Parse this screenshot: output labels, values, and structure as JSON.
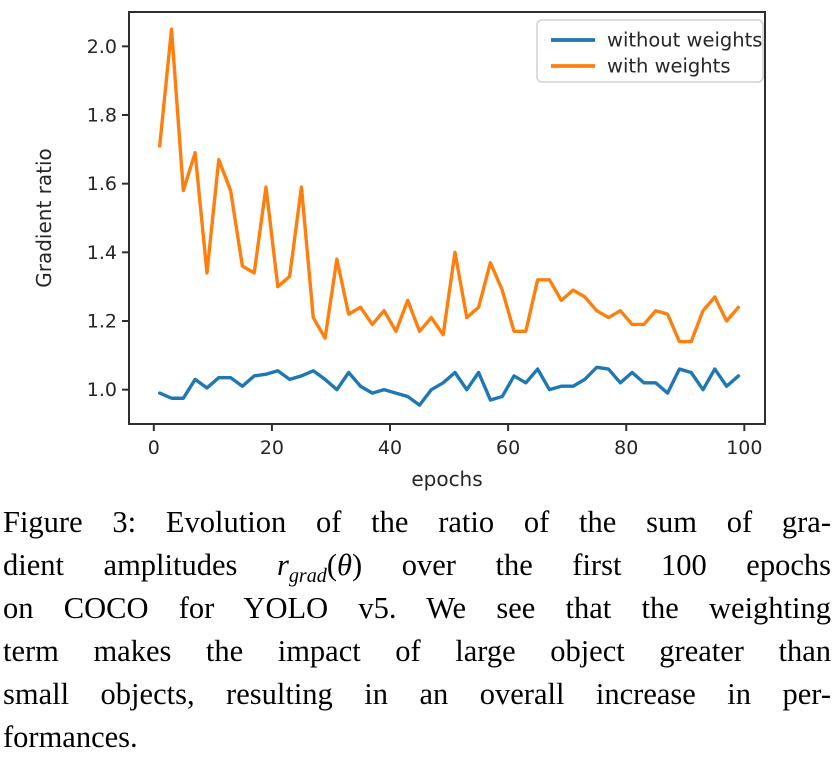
{
  "chart_data": {
    "type": "line",
    "title": "",
    "xlabel": "epochs",
    "ylabel": "Gradient ratio",
    "xlim": [
      -4.2,
      103.5
    ],
    "ylim": [
      0.9,
      2.1
    ],
    "xticks": [
      0,
      20,
      40,
      60,
      80,
      100
    ],
    "yticks": [
      1.0,
      1.2,
      1.4,
      1.6,
      1.8,
      2.0
    ],
    "grid": false,
    "legend_position": "upper right",
    "axis_color": "#2e2e2e",
    "tick_label_color": "#262626",
    "x": [
      1,
      3,
      5,
      7,
      9,
      11,
      13,
      15,
      17,
      19,
      21,
      23,
      25,
      27,
      29,
      31,
      33,
      35,
      37,
      39,
      41,
      43,
      45,
      47,
      49,
      51,
      53,
      55,
      57,
      59,
      61,
      63,
      65,
      67,
      69,
      71,
      73,
      75,
      77,
      79,
      81,
      83,
      85,
      87,
      89,
      91,
      93,
      95,
      97,
      99
    ],
    "series": [
      {
        "name": "without weights",
        "color": "#1f77b4",
        "values": [
          0.99,
          0.975,
          0.975,
          1.03,
          1.005,
          1.035,
          1.035,
          1.01,
          1.04,
          1.045,
          1.055,
          1.03,
          1.04,
          1.055,
          1.03,
          1.0,
          1.05,
          1.01,
          0.99,
          1.0,
          0.99,
          0.98,
          0.955,
          1.0,
          1.02,
          1.05,
          1.0,
          1.05,
          0.97,
          0.98,
          1.04,
          1.02,
          1.06,
          1.0,
          1.01,
          1.01,
          1.03,
          1.065,
          1.06,
          1.02,
          1.05,
          1.02,
          1.02,
          0.99,
          1.06,
          1.05,
          1.0,
          1.06,
          1.01,
          1.04
        ]
      },
      {
        "name": "with weights",
        "color": "#ff7f0e",
        "values": [
          1.71,
          2.05,
          1.58,
          1.69,
          1.34,
          1.67,
          1.58,
          1.36,
          1.34,
          1.59,
          1.3,
          1.33,
          1.59,
          1.21,
          1.15,
          1.38,
          1.22,
          1.24,
          1.19,
          1.23,
          1.17,
          1.26,
          1.17,
          1.21,
          1.16,
          1.4,
          1.21,
          1.24,
          1.37,
          1.29,
          1.17,
          1.17,
          1.32,
          1.32,
          1.26,
          1.29,
          1.27,
          1.23,
          1.21,
          1.23,
          1.19,
          1.19,
          1.23,
          1.22,
          1.14,
          1.14,
          1.23,
          1.27,
          1.2,
          1.24
        ]
      }
    ]
  },
  "caption": {
    "line1": "Figure 3:  Evolution of the ratio of the sum of gra-",
    "line2_pre": "dient amplitudes ",
    "line2_math_base": "r",
    "line2_math_sub": "grad",
    "line2_open_paren": "(",
    "line2_theta": "θ",
    "line2_close_paren": ")",
    "line2_post": " over the first 100 epochs",
    "line3": "on COCO for YOLO v5.  We see that the weighting",
    "line4": "term makes the impact of large object greater than",
    "line5": "small objects, resulting in an overall increase in per-",
    "line6": "formances."
  }
}
